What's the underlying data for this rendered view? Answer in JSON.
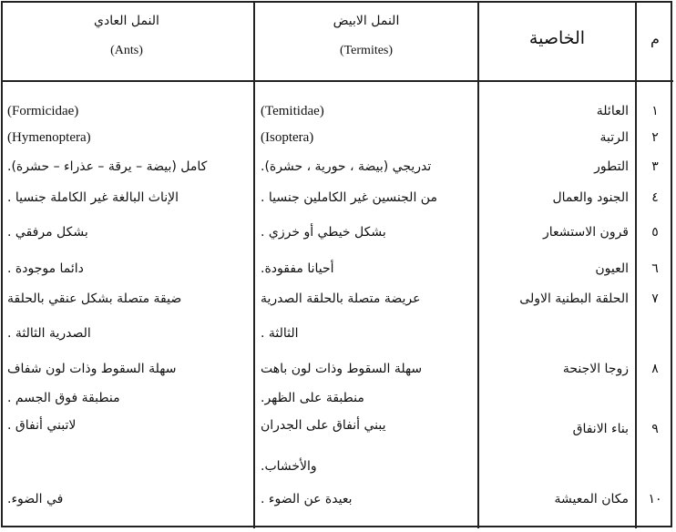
{
  "header": {
    "num": "م",
    "property": "الخاصية",
    "termites": "النمل الابيض",
    "termites_en": "(Termites)",
    "ants": "النمل العادي",
    "ants_en": "(Ants)"
  },
  "rows": [
    {
      "num": "١",
      "property": "العائلة",
      "termites": [
        "(Temitidae)"
      ],
      "ants": [
        "(Formicidae)"
      ]
    },
    {
      "num": "٢",
      "property": "الرتبة",
      "termites": [
        "(Isoptera)"
      ],
      "ants": [
        "(Hymenoptera)"
      ]
    },
    {
      "num": "٣",
      "property": "التطور",
      "termites": [
        "تدريجي (بيضة ، حورية ، حشرة)."
      ],
      "ants": [
        "كامل (بيضة – يرقة – عذراء – حشرة)."
      ]
    },
    {
      "num": "٤",
      "property": "الجنود والعمال",
      "termites": [
        "من الجنسين غير الكاملين جنسيا ."
      ],
      "ants": [
        "الإناث البالغة غير الكاملة جنسيا ."
      ]
    },
    {
      "num": "٥",
      "property": "قرون الاستشعار",
      "termites": [
        "بشكل خيطي أو خرزي ."
      ],
      "ants": [
        "بشكل مرفقي ."
      ]
    },
    {
      "num": "٦",
      "property": "العيون",
      "termites": [
        "أحيانا مفقودة."
      ],
      "ants": [
        "دائما موجودة ."
      ]
    },
    {
      "num": "٧",
      "property": "الحلقة البطنية الاولى",
      "termites": [
        "عريضة متصلة بالحلقة الصدرية",
        "الثالثة ."
      ],
      "ants": [
        "ضيقة متصلة بشكل عنقي بالحلقة",
        "الصدرية الثالثة ."
      ]
    },
    {
      "num": "٨",
      "property": "زوجا الاجنحة",
      "termites": [
        "سهلة السقوط وذات لون باهت",
        "منطبقة على الظهر."
      ],
      "ants": [
        "سهلة السقوط وذات لون شفاف",
        "منطبقة فوق الجسم ."
      ]
    },
    {
      "num": "٩",
      "property": "بناء الانفاق",
      "termites": [
        "يبني أنفاق على الجدران",
        "والأخشاب."
      ],
      "ants": [
        "لاتبني أنفاق ."
      ]
    },
    {
      "num": "١٠",
      "property": "مكان المعيشة",
      "termites": [
        "بعيدة عن الضوء ."
      ],
      "ants": [
        "في الضوء."
      ]
    }
  ]
}
